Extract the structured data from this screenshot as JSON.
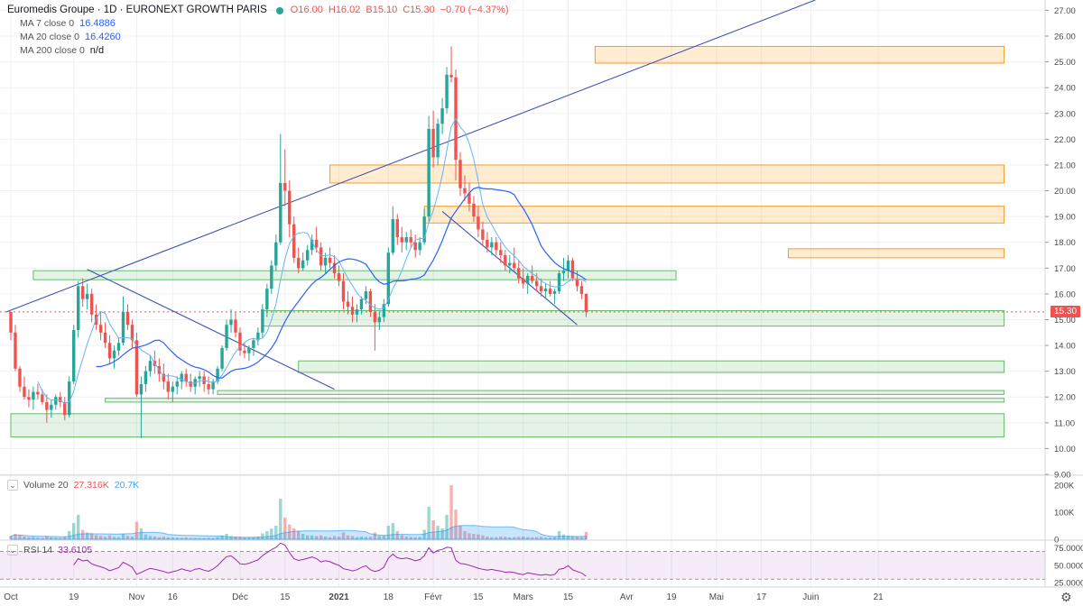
{
  "header": {
    "symbol": "Euromedis Groupe",
    "interval": "1D",
    "exchange": "EURONEXT GROWTH PARIS",
    "title_full": "Euromedis Groupe · 1D · EURONEXT GROWTH PARIS",
    "ohlc": {
      "open": "O16.00",
      "high": "H16.02",
      "low": "B15.10",
      "close": "C15.30",
      "change": "−0.70 (−4.37%)"
    }
  },
  "indicators": [
    {
      "label": "MA 7 close 0",
      "value": "16.4886",
      "color": "#1e88e5"
    },
    {
      "label": "MA 20 close 0",
      "value": "16.4260",
      "color": "#2962ff"
    },
    {
      "label": "MA 200 close 0",
      "value": "n/d",
      "color": "#131722"
    }
  ],
  "volume_legend": {
    "label": "Volume 20",
    "value1": "27.316K",
    "value2": "20.7K"
  },
  "rsi_legend": {
    "label": "RSI 14",
    "value": "33.6105"
  },
  "last_price_tag": "15.30",
  "colors": {
    "up": "#26a69a",
    "down": "#ef5350",
    "ma": "#2962ff",
    "ma_fast": "#64b5f6",
    "trend": "#3f51b5",
    "zone_green": "#2e7d32",
    "zone_orange": "#f57c00",
    "rsi": "#9c27b0"
  },
  "chart_data": {
    "type": "candlestick",
    "price_axis": {
      "ticks": [
        "27.00",
        "26.00",
        "25.00",
        "24.00",
        "23.00",
        "22.00",
        "21.00",
        "20.00",
        "19.00",
        "18.00",
        "17.00",
        "16.00",
        "15.00",
        "14.00",
        "13.00",
        "12.00",
        "11.00",
        "10.00",
        "9.00"
      ],
      "range": [
        9.0,
        27.4
      ]
    },
    "volume_axis": {
      "ticks": [
        "200K",
        "100K",
        "0"
      ]
    },
    "rsi_axis": {
      "ticks": [
        "75.0000",
        "50.0000",
        "25.0000"
      ]
    },
    "x_labels": [
      {
        "label": "Oct",
        "day": 0
      },
      {
        "label": "19",
        "day": 14
      },
      {
        "label": "Nov",
        "day": 28
      },
      {
        "label": "16",
        "day": 36
      },
      {
        "label": "Déc",
        "day": 51
      },
      {
        "label": "15",
        "day": 61
      },
      {
        "label": "2021",
        "day": 73
      },
      {
        "label": "18",
        "day": 84
      },
      {
        "label": "Févr",
        "day": 94
      },
      {
        "label": "15",
        "day": 104
      },
      {
        "label": "Mars",
        "day": 114
      },
      {
        "label": "15",
        "day": 124
      },
      {
        "label": "Avr",
        "day": 137
      },
      {
        "label": "19",
        "day": 147
      },
      {
        "label": "Mai",
        "day": 157
      },
      {
        "label": "17",
        "day": 167
      },
      {
        "label": "Juin",
        "day": 178
      },
      {
        "label": "21",
        "day": 193
      }
    ],
    "zones": [
      {
        "color": "orange",
        "x1": 130,
        "x2": 221,
        "low": 24.95,
        "high": 25.6
      },
      {
        "color": "orange",
        "x1": 71,
        "x2": 221,
        "low": 20.3,
        "high": 21.0
      },
      {
        "color": "orange",
        "x1": 92,
        "x2": 221,
        "low": 18.75,
        "high": 19.4
      },
      {
        "color": "orange",
        "x1": 173,
        "x2": 221,
        "low": 17.4,
        "high": 17.75
      },
      {
        "color": "green",
        "x1": 5,
        "x2": 148,
        "low": 16.55,
        "high": 16.9
      },
      {
        "color": "green",
        "x1": 56,
        "x2": 221,
        "low": 14.75,
        "high": 15.35
      },
      {
        "color": "green",
        "x1": 64,
        "x2": 221,
        "low": 12.95,
        "high": 13.4
      },
      {
        "color": "green",
        "x1": 46,
        "x2": 221,
        "low": 12.1,
        "high": 12.25
      },
      {
        "color": "green",
        "x1": 21,
        "x2": 221,
        "low": 11.8,
        "high": 11.95
      },
      {
        "color": "green",
        "x1": 0,
        "x2": 221,
        "low": 10.45,
        "high": 11.35
      }
    ],
    "trendlines": [
      {
        "d1": -1,
        "p1": 15.3,
        "d2": 179,
        "p2": 27.4
      },
      {
        "d1": 17,
        "p1": 16.95,
        "d2": 72,
        "p2": 12.3
      },
      {
        "d1": 96,
        "p1": 19.2,
        "d2": 126,
        "p2": 14.8
      }
    ],
    "candles": [
      [
        15.3,
        15.3,
        14.2,
        14.5,
        12
      ],
      [
        14.5,
        14.8,
        13.0,
        13.1,
        20
      ],
      [
        13.1,
        13.2,
        12.2,
        12.4,
        15
      ],
      [
        12.4,
        12.8,
        11.9,
        12.0,
        10
      ],
      [
        12.0,
        12.3,
        11.6,
        11.9,
        8
      ],
      [
        11.9,
        12.4,
        11.5,
        12.2,
        9
      ],
      [
        12.2,
        12.5,
        11.9,
        12.1,
        6
      ],
      [
        12.1,
        12.3,
        11.7,
        11.8,
        5
      ],
      [
        11.8,
        12.1,
        11.0,
        11.5,
        12
      ],
      [
        11.5,
        11.9,
        11.2,
        11.7,
        7
      ],
      [
        11.7,
        12.1,
        11.5,
        12.0,
        6
      ],
      [
        12.0,
        12.2,
        11.6,
        11.8,
        5
      ],
      [
        11.8,
        12.0,
        11.1,
        11.3,
        9
      ],
      [
        11.3,
        12.8,
        11.2,
        12.6,
        30
      ],
      [
        12.6,
        14.8,
        12.5,
        14.6,
        60
      ],
      [
        14.6,
        16.5,
        14.3,
        16.3,
        90
      ],
      [
        16.3,
        16.6,
        15.5,
        15.8,
        35
      ],
      [
        15.8,
        16.4,
        15.4,
        16.0,
        25
      ],
      [
        16.0,
        16.2,
        14.9,
        15.2,
        22
      ],
      [
        15.2,
        15.6,
        14.6,
        14.8,
        15
      ],
      [
        14.8,
        15.3,
        14.2,
        14.5,
        12
      ],
      [
        14.5,
        14.9,
        13.9,
        14.1,
        10
      ],
      [
        14.1,
        14.4,
        13.3,
        13.5,
        14
      ],
      [
        13.5,
        14.0,
        13.1,
        13.8,
        9
      ],
      [
        13.8,
        14.3,
        13.6,
        14.1,
        8
      ],
      [
        14.1,
        15.9,
        14.0,
        15.3,
        20
      ],
      [
        15.3,
        15.6,
        14.6,
        14.8,
        12
      ],
      [
        14.8,
        15.0,
        13.9,
        14.2,
        10
      ],
      [
        14.2,
        14.5,
        12.0,
        12.1,
        65
      ],
      [
        12.1,
        12.8,
        10.4,
        12.5,
        40
      ],
      [
        12.5,
        13.2,
        12.2,
        13.0,
        18
      ],
      [
        13.0,
        13.6,
        12.8,
        13.4,
        12
      ],
      [
        13.4,
        13.8,
        12.9,
        13.2,
        10
      ],
      [
        13.2,
        13.5,
        12.6,
        12.9,
        8
      ],
      [
        12.9,
        13.3,
        12.3,
        12.6,
        9
      ],
      [
        12.6,
        12.9,
        11.9,
        12.2,
        7
      ],
      [
        12.2,
        12.6,
        11.8,
        12.4,
        6
      ],
      [
        12.4,
        12.8,
        12.1,
        12.6,
        6
      ],
      [
        12.6,
        13.0,
        12.3,
        12.9,
        5
      ],
      [
        12.9,
        13.1,
        12.4,
        12.6,
        6
      ],
      [
        12.6,
        12.9,
        12.2,
        12.4,
        5
      ],
      [
        12.4,
        12.8,
        12.1,
        12.7,
        5
      ],
      [
        12.7,
        13.0,
        12.4,
        12.8,
        4
      ],
      [
        12.8,
        13.0,
        12.2,
        12.5,
        4
      ],
      [
        12.5,
        12.8,
        12.1,
        12.3,
        5
      ],
      [
        12.3,
        12.7,
        12.1,
        12.6,
        4
      ],
      [
        12.6,
        13.2,
        12.5,
        13.1,
        8
      ],
      [
        13.1,
        14.0,
        13.0,
        13.9,
        14
      ],
      [
        13.9,
        15.0,
        13.8,
        14.8,
        20
      ],
      [
        14.8,
        15.4,
        14.5,
        15.0,
        12
      ],
      [
        15.0,
        15.3,
        14.3,
        14.5,
        10
      ],
      [
        14.5,
        14.7,
        13.6,
        13.8,
        9
      ],
      [
        13.8,
        14.1,
        13.5,
        13.7,
        6
      ],
      [
        13.7,
        14.0,
        13.4,
        13.9,
        6
      ],
      [
        13.9,
        14.3,
        13.6,
        14.2,
        8
      ],
      [
        14.2,
        14.7,
        14.0,
        14.5,
        10
      ],
      [
        14.5,
        15.6,
        14.3,
        15.4,
        22
      ],
      [
        15.4,
        16.4,
        15.1,
        16.2,
        30
      ],
      [
        16.2,
        17.3,
        16.0,
        17.1,
        40
      ],
      [
        17.1,
        18.3,
        16.9,
        18.0,
        50
      ],
      [
        18.0,
        22.2,
        17.9,
        20.3,
        150
      ],
      [
        20.3,
        21.6,
        19.4,
        20.0,
        80
      ],
      [
        20.0,
        20.4,
        18.2,
        18.7,
        55
      ],
      [
        18.7,
        19.0,
        17.2,
        17.4,
        40
      ],
      [
        17.4,
        17.8,
        16.8,
        17.0,
        30
      ],
      [
        17.0,
        17.6,
        16.9,
        17.3,
        20
      ],
      [
        17.3,
        17.9,
        17.1,
        17.7,
        15
      ],
      [
        17.7,
        18.3,
        17.5,
        18.1,
        14
      ],
      [
        18.1,
        18.6,
        17.6,
        17.8,
        12
      ],
      [
        17.8,
        18.0,
        16.9,
        17.1,
        14
      ],
      [
        17.1,
        17.6,
        16.8,
        17.4,
        10
      ],
      [
        17.4,
        17.8,
        17.0,
        17.2,
        8
      ],
      [
        17.2,
        17.5,
        16.6,
        16.8,
        12
      ],
      [
        16.8,
        17.1,
        16.3,
        16.5,
        10
      ],
      [
        16.5,
        16.8,
        15.4,
        15.7,
        25
      ],
      [
        15.7,
        16.1,
        15.2,
        15.5,
        14
      ],
      [
        15.5,
        15.9,
        14.9,
        15.2,
        12
      ],
      [
        15.2,
        15.6,
        14.9,
        15.4,
        8
      ],
      [
        15.4,
        15.9,
        15.2,
        15.8,
        10
      ],
      [
        15.8,
        16.3,
        15.6,
        16.1,
        9
      ],
      [
        16.1,
        16.2,
        15.1,
        15.3,
        10
      ],
      [
        15.3,
        15.6,
        13.8,
        14.9,
        25
      ],
      [
        14.9,
        15.3,
        14.6,
        15.1,
        12
      ],
      [
        15.1,
        15.8,
        14.9,
        15.6,
        14
      ],
      [
        15.6,
        17.8,
        15.5,
        17.6,
        50
      ],
      [
        17.6,
        19.4,
        17.5,
        18.9,
        60
      ],
      [
        18.9,
        19.1,
        17.9,
        18.2,
        30
      ],
      [
        18.2,
        18.6,
        17.6,
        18.0,
        15
      ],
      [
        18.0,
        18.4,
        17.7,
        18.2,
        10
      ],
      [
        18.2,
        18.5,
        17.8,
        18.0,
        9
      ],
      [
        18.0,
        18.3,
        17.4,
        17.7,
        8
      ],
      [
        17.7,
        18.2,
        17.5,
        18.0,
        9
      ],
      [
        18.0,
        19.3,
        17.9,
        19.0,
        35
      ],
      [
        19.0,
        22.9,
        18.8,
        22.4,
        120
      ],
      [
        22.4,
        23.1,
        20.9,
        21.3,
        70
      ],
      [
        21.3,
        22.8,
        21.0,
        22.6,
        50
      ],
      [
        22.6,
        23.6,
        22.2,
        23.2,
        40
      ],
      [
        23.2,
        24.8,
        23.0,
        24.5,
        90
      ],
      [
        24.5,
        25.6,
        24.2,
        24.4,
        200
      ],
      [
        24.4,
        24.7,
        20.4,
        21.2,
        110
      ],
      [
        21.2,
        21.5,
        19.8,
        20.1,
        50
      ],
      [
        20.1,
        20.6,
        19.6,
        19.9,
        30
      ],
      [
        19.9,
        20.3,
        19.2,
        19.5,
        22
      ],
      [
        19.5,
        19.8,
        18.8,
        19.0,
        20
      ],
      [
        19.0,
        19.4,
        18.2,
        18.5,
        18
      ],
      [
        18.5,
        18.8,
        17.9,
        18.1,
        14
      ],
      [
        18.1,
        18.4,
        17.6,
        17.8,
        10
      ],
      [
        17.8,
        18.2,
        17.5,
        18.0,
        8
      ],
      [
        18.0,
        18.2,
        17.5,
        17.7,
        8
      ],
      [
        17.7,
        18.0,
        17.2,
        17.5,
        10
      ],
      [
        17.5,
        17.7,
        16.9,
        17.1,
        9
      ],
      [
        17.1,
        17.5,
        16.8,
        17.2,
        7
      ],
      [
        17.2,
        17.8,
        16.9,
        17.0,
        8
      ],
      [
        17.0,
        17.3,
        16.4,
        16.6,
        9
      ],
      [
        16.6,
        17.0,
        16.2,
        16.4,
        10
      ],
      [
        16.4,
        16.8,
        16.0,
        16.7,
        8
      ],
      [
        16.7,
        17.1,
        16.4,
        16.5,
        7
      ],
      [
        16.5,
        16.8,
        16.1,
        16.3,
        8
      ],
      [
        16.3,
        16.6,
        15.9,
        16.1,
        9
      ],
      [
        16.1,
        16.4,
        15.8,
        16.2,
        6
      ],
      [
        16.2,
        16.5,
        15.9,
        16.0,
        6
      ],
      [
        16.0,
        16.2,
        15.6,
        16.1,
        8
      ],
      [
        16.1,
        16.9,
        16.0,
        16.8,
        30
      ],
      [
        16.8,
        17.4,
        16.5,
        16.9,
        18
      ],
      [
        16.9,
        17.5,
        16.6,
        17.3,
        14
      ],
      [
        17.3,
        17.4,
        16.5,
        16.6,
        12
      ],
      [
        16.6,
        16.9,
        16.1,
        16.3,
        10
      ],
      [
        16.3,
        16.5,
        15.8,
        16.0,
        8
      ],
      [
        16.0,
        16.02,
        15.1,
        15.3,
        27
      ]
    ]
  }
}
